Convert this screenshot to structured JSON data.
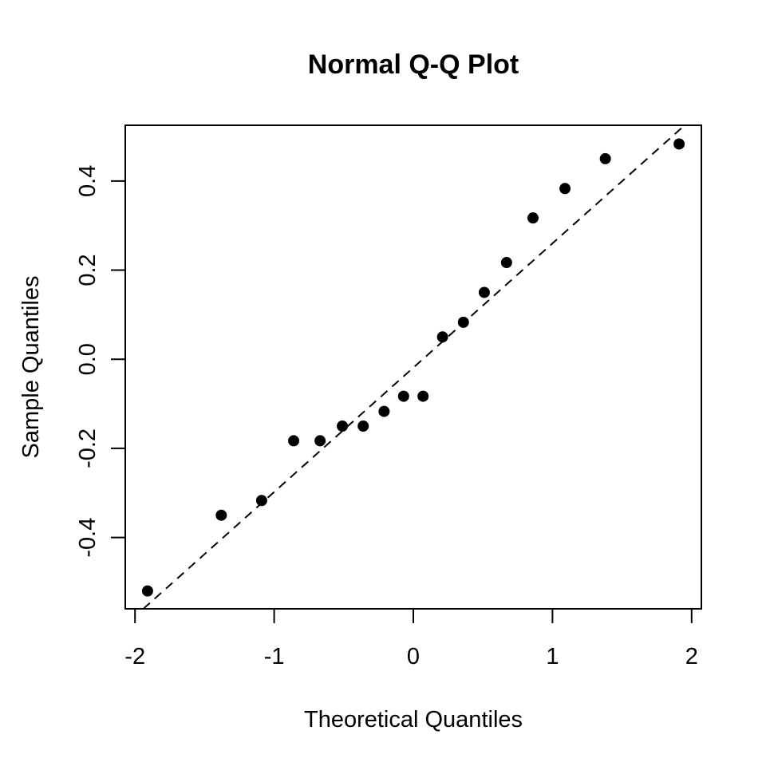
{
  "chart_data": {
    "type": "scatter",
    "title": "Normal Q-Q Plot",
    "xlabel": "Theoretical Quantiles",
    "ylabel": "Sample Quantiles",
    "xlim": [
      -2.07,
      2.07
    ],
    "ylim": [
      -0.56,
      0.525
    ],
    "x_ticks": [
      -2,
      -1,
      0,
      1,
      2
    ],
    "x_tick_labels": [
      "-2",
      "-1",
      "0",
      "1",
      "2"
    ],
    "y_ticks": [
      -0.4,
      -0.2,
      0.0,
      0.2,
      0.4
    ],
    "y_tick_labels": [
      "-0.4",
      "-0.2",
      "0.0",
      "0.2",
      "0.4"
    ],
    "grid": false,
    "legend": "none",
    "point_color": "#000000",
    "points": [
      {
        "x": -1.91,
        "y": -0.52
      },
      {
        "x": -1.38,
        "y": -0.35
      },
      {
        "x": -1.09,
        "y": -0.317
      },
      {
        "x": -0.86,
        "y": -0.183
      },
      {
        "x": -0.67,
        "y": -0.183
      },
      {
        "x": -0.51,
        "y": -0.15
      },
      {
        "x": -0.36,
        "y": -0.15
      },
      {
        "x": -0.21,
        "y": -0.117
      },
      {
        "x": -0.07,
        "y": -0.083
      },
      {
        "x": 0.07,
        "y": -0.083
      },
      {
        "x": 0.21,
        "y": 0.05
      },
      {
        "x": 0.36,
        "y": 0.083
      },
      {
        "x": 0.51,
        "y": 0.15
      },
      {
        "x": 0.67,
        "y": 0.217
      },
      {
        "x": 0.86,
        "y": 0.317
      },
      {
        "x": 1.09,
        "y": 0.383
      },
      {
        "x": 1.38,
        "y": 0.45
      },
      {
        "x": 1.91,
        "y": 0.483
      }
    ],
    "reference_line": {
      "style": "dashed",
      "intercept": -0.0189,
      "slope": 0.2789
    }
  }
}
